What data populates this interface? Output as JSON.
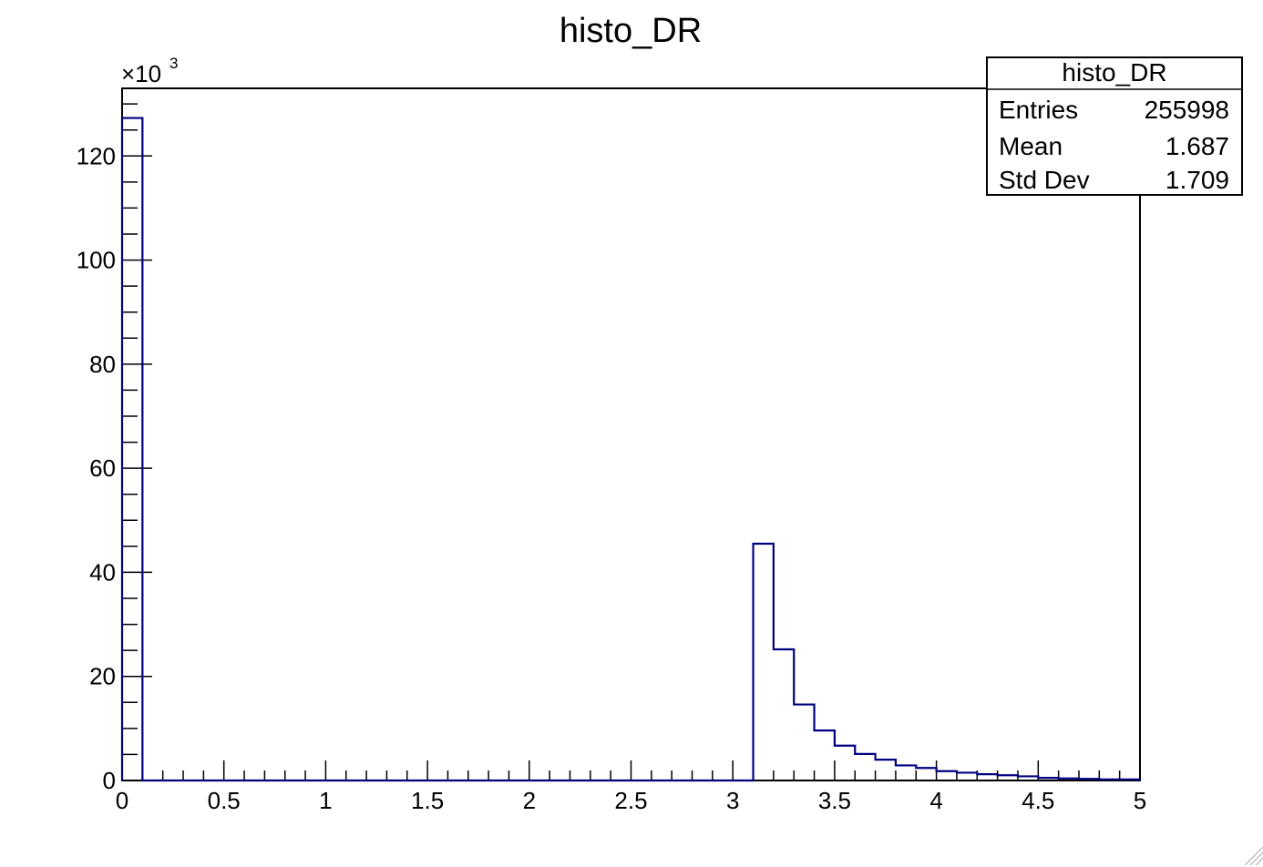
{
  "chart_data": {
    "type": "bar",
    "title": "histo_DR",
    "xlabel": "",
    "ylabel": "",
    "xlim": [
      0,
      5
    ],
    "ylim": [
      0,
      133
    ],
    "y_multiplier_base": "×10",
    "y_multiplier_exp": "3",
    "bin_width": 0.1,
    "bins_x_low": [
      0.0,
      0.1,
      0.2,
      0.3,
      0.4,
      0.5,
      0.6,
      0.7,
      0.8,
      0.9,
      1.0,
      1.1,
      1.2,
      1.3,
      1.4,
      1.5,
      1.6,
      1.7,
      1.8,
      1.9,
      2.0,
      2.1,
      2.2,
      2.3,
      2.4,
      2.5,
      2.6,
      2.7,
      2.8,
      2.9,
      3.0,
      3.1,
      3.2,
      3.3,
      3.4,
      3.5,
      3.6,
      3.7,
      3.8,
      3.9,
      4.0,
      4.1,
      4.2,
      4.3,
      4.4,
      4.5,
      4.6,
      4.7,
      4.8,
      4.9
    ],
    "values": [
      127.3,
      0,
      0,
      0,
      0,
      0,
      0,
      0,
      0,
      0,
      0,
      0,
      0,
      0,
      0,
      0,
      0,
      0,
      0,
      0,
      0,
      0,
      0,
      0,
      0,
      0,
      0,
      0,
      0,
      0,
      0,
      45.5,
      25.2,
      14.6,
      9.6,
      6.7,
      5.1,
      4.0,
      2.9,
      2.4,
      1.8,
      1.5,
      1.2,
      1.0,
      0.8,
      0.5,
      0.4,
      0.3,
      0.2,
      0.2
    ],
    "x_ticks": [
      "0",
      "0.5",
      "1",
      "1.5",
      "2",
      "2.5",
      "3",
      "3.5",
      "4",
      "4.5",
      "5"
    ],
    "y_ticks": [
      "0",
      "20",
      "40",
      "60",
      "80",
      "100",
      "120"
    ],
    "series": [
      {
        "color": "#000080"
      }
    ],
    "grid": false,
    "legend": "top-right"
  },
  "stats": {
    "name": "histo_DR",
    "entries_label": "Entries",
    "entries_value": "255998",
    "mean_label": "Mean",
    "mean_value": "1.687",
    "std_label": "Std Dev",
    "std_value": "1.709"
  }
}
